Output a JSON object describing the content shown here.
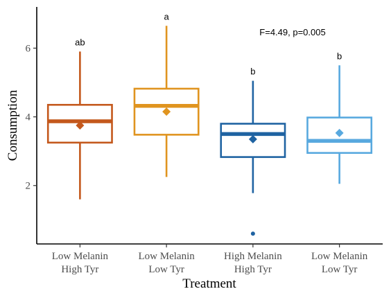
{
  "chart_data": {
    "type": "boxplot",
    "xlabel": "Treatment",
    "ylabel": "Consumption",
    "ylim": [
      0.3,
      7.2
    ],
    "yticks": [
      2,
      4,
      6
    ],
    "annotation": "F=4.49, p=0.005",
    "grid": false,
    "legend": "none",
    "categories": [
      {
        "label_lines": [
          "Low Melanin",
          "High Tyr"
        ],
        "color": "#C4581C",
        "min": 1.6,
        "q1": 3.25,
        "median": 3.87,
        "q3": 4.35,
        "max": 5.9,
        "mean": 3.75,
        "outliers": [],
        "significance": "ab"
      },
      {
        "label_lines": [
          "Low Melanin",
          "Low Tyr"
        ],
        "color": "#E0941F",
        "min": 2.25,
        "q1": 3.48,
        "median": 4.32,
        "q3": 4.82,
        "max": 6.65,
        "mean": 4.15,
        "outliers": [],
        "significance": "a"
      },
      {
        "label_lines": [
          "High Melanin",
          "High Tyr"
        ],
        "color": "#1F63A2",
        "min": 1.78,
        "q1": 2.83,
        "median": 3.5,
        "q3": 3.8,
        "max": 5.05,
        "mean": 3.35,
        "outliers": [
          0.6
        ],
        "significance": "b"
      },
      {
        "label_lines": [
          "Low Melanin",
          "Low Tyr"
        ],
        "color": "#58A9DF",
        "min": 2.05,
        "q1": 2.95,
        "median": 3.3,
        "q3": 3.98,
        "max": 5.5,
        "mean": 3.53,
        "outliers": [],
        "significance": "b"
      }
    ]
  }
}
